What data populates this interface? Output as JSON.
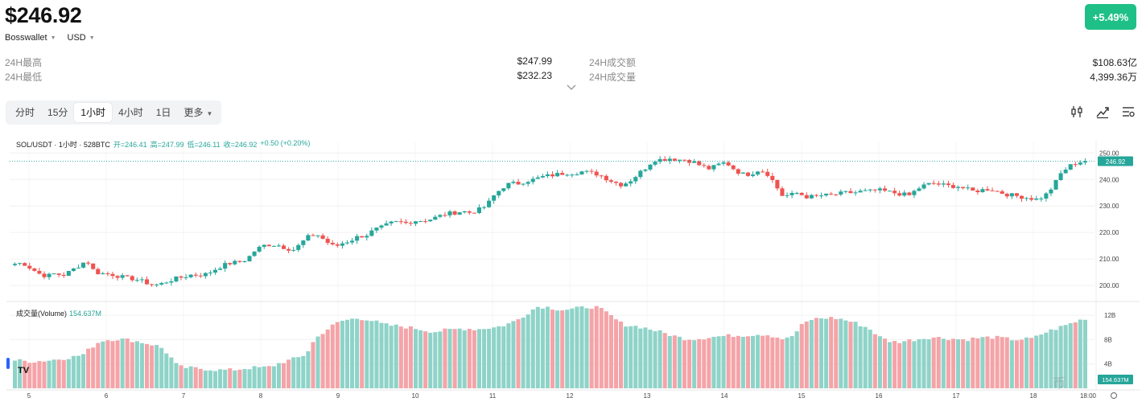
{
  "header": {
    "price": "$246.92",
    "change": "+5.49%",
    "wallet": "Bosswallet",
    "currency": "USD"
  },
  "stats": {
    "high_label": "24H最高",
    "high_value": "$247.99",
    "low_label": "24H最低",
    "low_value": "$232.23",
    "turnover_label": "24H成交额",
    "turnover_value": "$108.63亿",
    "volume_label": "24H成交量",
    "volume_value": "4,399.36万"
  },
  "tabs": {
    "t1": "分时",
    "t2": "15分",
    "t3": "1小时",
    "t4": "4小时",
    "t5": "1日",
    "more": "更多"
  },
  "icons": {
    "indicator": "candlestick-settings-icon",
    "draw": "line-draw-icon",
    "settings": "list-settings-icon",
    "expand": "chevron-down-icon"
  },
  "chart_legend": {
    "symbol": "SOL/USDT · 1小时 · 528BTC",
    "open": "开=246.41",
    "high": "高=247.99",
    "low": "低=246.11",
    "close": "收=246.92",
    "change": "+0.50 (+0.20%)",
    "volume_label": "成交量(Volume)",
    "volume_value": "154.637M",
    "last_price_tag": "246.92",
    "volume_tag": "154.637M",
    "watermark": "币"
  },
  "colors": {
    "up": "#26a69a",
    "down": "#ef5350",
    "up_vol": "#8fd3c8",
    "down_vol": "#f4a4a8",
    "badge": "#1fc088",
    "accent": "#2962ff"
  },
  "chart_data": {
    "type": "candlestick",
    "price_axis": {
      "min": 197,
      "max": 251,
      "ticks": [
        "250.00",
        "240.00",
        "230.00",
        "220.00",
        "210.00",
        "200.00"
      ],
      "tick_values": [
        250,
        240,
        230,
        220,
        210,
        200
      ]
    },
    "volume_axis": {
      "min": 0,
      "max": 14,
      "ticks": [
        "12B",
        "8B",
        "4B"
      ],
      "tick_values": [
        12,
        8,
        4
      ]
    },
    "x_ticks": [
      "5",
      "6",
      "7",
      "8",
      "9",
      "10",
      "11",
      "12",
      "13",
      "14",
      "15",
      "16",
      "17",
      "18",
      "18:00"
    ],
    "last_price": 246.92,
    "close_path": [
      208.2,
      208.5,
      206.5,
      204.5,
      203.5,
      204.5,
      203.8,
      205.5,
      207.5,
      209.5,
      205,
      204.5,
      204.3,
      203.5,
      202.8,
      202.5,
      201.5,
      200.5,
      200.2,
      201.5,
      202.5,
      203.2,
      204,
      204,
      204.3,
      206,
      207.5,
      208.5,
      208.8,
      209.8,
      213,
      215,
      215.5,
      215.2,
      214,
      213.5,
      216.5,
      219,
      219,
      216.5,
      214.5,
      216,
      217,
      218.5,
      219,
      221,
      222,
      223.5,
      224,
      223.5,
      224.5,
      224.5,
      225,
      226,
      227,
      227.5,
      228,
      227.5,
      228.5,
      230,
      234,
      237,
      238.5,
      238.5,
      239.5,
      240,
      241,
      241.5,
      242,
      242.5,
      242.5,
      243,
      242.5,
      242,
      240.5,
      239,
      238,
      239.5,
      242,
      244.5,
      247.5,
      247.5,
      248,
      247.5,
      247.5,
      246.5,
      245,
      244,
      245.5,
      246.5,
      244,
      242,
      242,
      243.5,
      243,
      239,
      234,
      234,
      235,
      233.5,
      233.5,
      234,
      234,
      234.5,
      235,
      235,
      235.5,
      235.5,
      236,
      235.5,
      235,
      234.5,
      234,
      236.5,
      238,
      238.5,
      238,
      237.5,
      237.5,
      236.5,
      235.5,
      236,
      236.5,
      235.5,
      234.5,
      234,
      233.5,
      233,
      232.5,
      234,
      237.5,
      242.5,
      245,
      246.5,
      246.92
    ],
    "volume_path": [
      4.6,
      4.5,
      4.4,
      4.5,
      4.6,
      4.8,
      5.0,
      5.2,
      5.6,
      6.8,
      7.8,
      8.0,
      8.1,
      8.0,
      7.8,
      7.5,
      7.2,
      6.8,
      5.5,
      3.6,
      3.4,
      3.3,
      3.2,
      3.1,
      3.0,
      3.0,
      3.1,
      3.3,
      3.4,
      3.4,
      3.6,
      4.2,
      4.6,
      5.0,
      5.6,
      8.0,
      9.2,
      10.2,
      11.0,
      11.3,
      11.5,
      11.4,
      11.0,
      10.5,
      10.3,
      10.2,
      10.0,
      9.8,
      9.5,
      9.3,
      9.5,
      9.6,
      9.8,
      9.8,
      9.7,
      9.9,
      10.0,
      10.3,
      10.8,
      11.5,
      12.5,
      13.4,
      13.4,
      13.1,
      12.9,
      13.0,
      13.2,
      13.4,
      13.3,
      12.5,
      11.5,
      10.5,
      10.3,
      10.1,
      9.8,
      9.4,
      9.0,
      8.6,
      8.2,
      8.1,
      8.2,
      8.4,
      8.5,
      8.6,
      8.7,
      8.7,
      8.8,
      8.9,
      8.8,
      8.4,
      8.0,
      8.8,
      10.5,
      11.3,
      11.5,
      11.6,
      11.5,
      11.2,
      10.8,
      10.3,
      9.6,
      8.4,
      7.8,
      7.6,
      7.8,
      8.0,
      8.2,
      8.4,
      8.3,
      8.2,
      8.1,
      8.0,
      8.2,
      8.3,
      8.4,
      8.3,
      8.1,
      8.0,
      8.1,
      8.2,
      9.0,
      9.5,
      10.0,
      10.5,
      11.0,
      11.5
    ]
  }
}
